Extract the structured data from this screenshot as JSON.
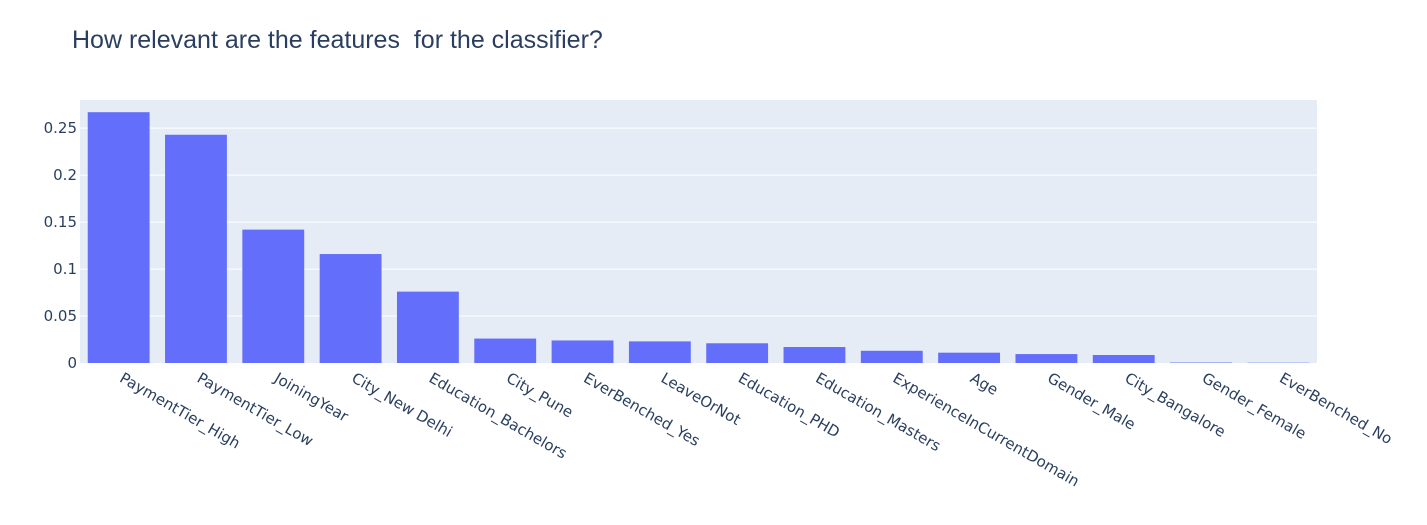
{
  "chart_data": {
    "type": "bar",
    "title": "How relevant are the features  for the classifier?",
    "xlabel": "",
    "ylabel": "",
    "categories": [
      "PaymentTier_High",
      "PaymentTier_Low",
      "JoiningYear",
      "City_New Delhi",
      "Education_Bachelors",
      "City_Pune",
      "EverBenched_Yes",
      "LeaveOrNot",
      "Education_PHD",
      "Education_Masters",
      "ExperienceInCurrentDomain",
      "Age",
      "Gender_Male",
      "City_Bangalore",
      "Gender_Female",
      "EverBenched_No"
    ],
    "values": [
      0.267,
      0.243,
      0.142,
      0.116,
      0.076,
      0.026,
      0.024,
      0.023,
      0.021,
      0.017,
      0.013,
      0.011,
      0.0095,
      0.0085,
      0.0005,
      0.0003
    ],
    "ylim": [
      0,
      0.28
    ],
    "yticks": [
      0,
      0.05,
      0.1,
      0.15,
      0.2,
      0.25
    ],
    "ytick_labels": [
      "0",
      "0.05",
      "0.1",
      "0.15",
      "0.2",
      "0.25"
    ],
    "grid": true,
    "colors": {
      "bar": "#636efa",
      "plot_bg": "#e5ecf6",
      "grid": "#ffffff",
      "text": "#2a3f5f"
    }
  }
}
